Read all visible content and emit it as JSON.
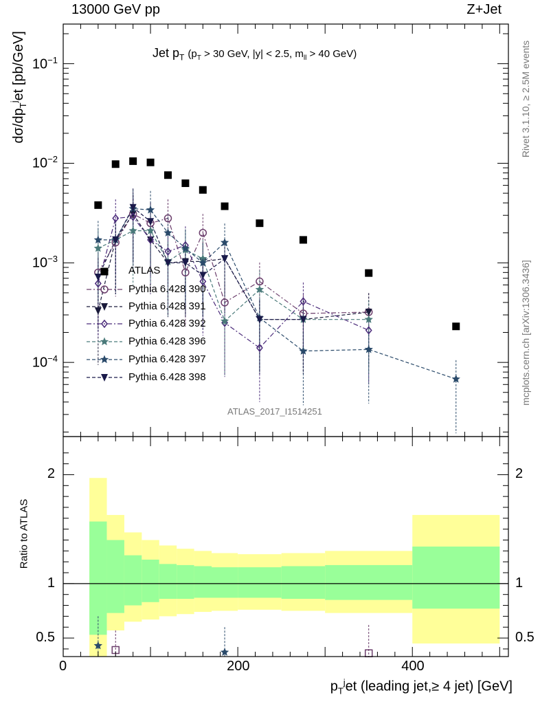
{
  "header": {
    "left": "13000 GeV pp",
    "right": "Z+Jet"
  },
  "title": {
    "main": "Jet p",
    "main_sub": "T",
    "cuts": "(p",
    "cuts_sub": "T",
    "cuts_rest": " > 30 GeV, |y| < 2.5, m",
    "cuts_sub2": "ll",
    "cuts_end": " > 40 GeV)"
  },
  "side_text": {
    "rivet": "Rivet 3.1.10, ≥ 2.5M events",
    "mcplots": "mcplots.cern.ch [arXiv:1306.3436]"
  },
  "analysis_tag": "ATLAS_2017_I1514251",
  "ylabel_top": "dσ/dp",
  "ylabel_top_sub": "T",
  "ylabel_top_sup": "j",
  "ylabel_top_rest": "et [pb/GeV]",
  "ylabel_bottom": "Ratio to ATLAS",
  "xlabel": "p",
  "xlabel_sub": "T",
  "xlabel_sup": "j",
  "xlabel_rest": "et (leading jet,≥ 4 jet) [GeV]",
  "chart_data": [
    {
      "type": "scatter",
      "panel": "main",
      "yscale": "log",
      "xlim": [
        0,
        510
      ],
      "ylim": [
        1.8e-05,
        0.25
      ],
      "xticks": [
        0,
        200,
        400
      ],
      "yticks": [
        {
          "value": 0.0001,
          "base": "10",
          "exp": "−4"
        },
        {
          "value": 0.001,
          "base": "10",
          "exp": "−3"
        },
        {
          "value": 0.01,
          "base": "10",
          "exp": "−2"
        },
        {
          "value": 0.1,
          "base": "10",
          "exp": "−1"
        }
      ],
      "legend_position": "left, middle of upper panel",
      "series": [
        {
          "name": "ATLAS",
          "color": "#000000",
          "marker": "square-filled",
          "line": "none",
          "x": [
            40,
            60,
            80,
            100,
            120,
            140,
            160,
            185,
            225,
            275,
            350,
            450
          ],
          "y": [
            0.0038,
            0.0098,
            0.0105,
            0.0102,
            0.0076,
            0.0063,
            0.0054,
            0.0037,
            0.0025,
            0.0017,
            0.00079,
            0.00023
          ]
        },
        {
          "name": "Pythia 6.428 390",
          "color": "#6b3d6b",
          "marker": "circle-open",
          "line": "dashdot",
          "x": [
            40,
            60,
            80,
            100,
            120,
            140,
            160,
            185,
            225,
            275,
            350
          ],
          "y": [
            0.0008,
            0.0016,
            0.0031,
            0.0025,
            0.0028,
            0.0008,
            0.002,
            0.0004,
            0.00065,
            0.00031,
            0.00032
          ]
        },
        {
          "name": "Pythia 6.428 391",
          "color": "#1a1a3a",
          "marker": "triangle-down-filled",
          "line": "dashed",
          "x": [
            40,
            60,
            80,
            100,
            120,
            140,
            160,
            185,
            225,
            275,
            350
          ],
          "y": [
            0.00033,
            0.0017,
            0.0031,
            0.0017,
            0.001,
            0.00103,
            0.00103,
            0.0011,
            0.00027,
            0.00027,
            0.00032
          ]
        },
        {
          "name": "Pythia 6.428 392",
          "color": "#4a2a7a",
          "marker": "diamond-open",
          "line": "dashdot",
          "x": [
            40,
            60,
            80,
            100,
            120,
            140,
            160,
            185,
            225,
            275,
            350
          ],
          "y": [
            0.00062,
            0.0028,
            0.0029,
            0.0017,
            0.0013,
            0.0015,
            0.00065,
            0.00025,
            0.00014,
            0.00041,
            0.00021
          ]
        },
        {
          "name": "Pythia 6.428 396",
          "color": "#4a7a7a",
          "marker": "star-filled",
          "line": "dashed",
          "x": [
            40,
            60,
            80,
            100,
            120,
            140,
            160,
            185,
            225,
            275,
            350
          ],
          "y": [
            0.0014,
            0.0017,
            0.0021,
            0.0021,
            0.00103,
            0.00135,
            0.0011,
            0.00026,
            0.00054,
            0.00027,
            0.00027
          ]
        },
        {
          "name": "Pythia 6.428 397",
          "color": "#2a4a6a",
          "marker": "star-filled",
          "line": "dashed",
          "x": [
            40,
            60,
            80,
            100,
            120,
            140,
            160,
            185,
            225,
            275,
            350,
            450
          ],
          "y": [
            0.0017,
            0.0017,
            0.0035,
            0.0034,
            0.002,
            0.0014,
            0.001,
            0.0016,
            0.00028,
            0.00013,
            0.000135,
            6.8e-05
          ]
        },
        {
          "name": "Pythia 6.428 398",
          "color": "#1a1a4a",
          "marker": "triangle-down-filled",
          "line": "dashed",
          "x": [
            40,
            60,
            80,
            100,
            120,
            140,
            160,
            185,
            225,
            275
          ],
          "y": [
            0.00072,
            0.0017,
            0.0036,
            0.0026,
            0.001,
            0.001,
            0.00075,
            0.0011,
            0.00027,
            0.00027
          ]
        }
      ]
    },
    {
      "type": "area",
      "panel": "ratio",
      "yscale": "linear",
      "xlim": [
        0,
        510
      ],
      "ylim": [
        0.33,
        2.35
      ],
      "xticks": [
        0,
        200,
        400
      ],
      "yticks": [
        0.5,
        1,
        2
      ],
      "reference_line": 1,
      "bins": [
        {
          "lo": 30,
          "hi": 50,
          "green": [
            0.53,
            1.57
          ],
          "yellow": [
            0.33,
            1.97
          ]
        },
        {
          "lo": 50,
          "hi": 70,
          "green": [
            0.73,
            1.4
          ],
          "yellow": [
            0.57,
            1.63
          ]
        },
        {
          "lo": 70,
          "hi": 90,
          "green": [
            0.8,
            1.26
          ],
          "yellow": [
            0.65,
            1.47
          ]
        },
        {
          "lo": 90,
          "hi": 110,
          "green": [
            0.83,
            1.22
          ],
          "yellow": [
            0.67,
            1.4
          ]
        },
        {
          "lo": 110,
          "hi": 130,
          "green": [
            0.86,
            1.18
          ],
          "yellow": [
            0.7,
            1.35
          ]
        },
        {
          "lo": 130,
          "hi": 150,
          "green": [
            0.86,
            1.17
          ],
          "yellow": [
            0.72,
            1.32
          ]
        },
        {
          "lo": 150,
          "hi": 170,
          "green": [
            0.87,
            1.16
          ],
          "yellow": [
            0.74,
            1.3
          ]
        },
        {
          "lo": 170,
          "hi": 200,
          "green": [
            0.87,
            1.15
          ],
          "yellow": [
            0.75,
            1.28
          ]
        },
        {
          "lo": 200,
          "hi": 250,
          "green": [
            0.87,
            1.15
          ],
          "yellow": [
            0.76,
            1.27
          ]
        },
        {
          "lo": 250,
          "hi": 300,
          "green": [
            0.86,
            1.16
          ],
          "yellow": [
            0.75,
            1.28
          ]
        },
        {
          "lo": 300,
          "hi": 400,
          "green": [
            0.85,
            1.17
          ],
          "yellow": [
            0.73,
            1.3
          ]
        },
        {
          "lo": 400,
          "hi": 500,
          "green": [
            0.77,
            1.34
          ],
          "yellow": [
            0.45,
            1.63
          ]
        }
      ],
      "points": [
        {
          "series": "Pythia 6.428 397",
          "x": 40,
          "y": 0.43,
          "err": [
            0.3,
            0.7
          ],
          "color": "#2a4a6a",
          "marker": "star-filled"
        },
        {
          "series": "Pythia 6.428 391",
          "x": 60,
          "y": 0.39,
          "err": [
            0.3,
            0.57
          ],
          "color": "#6b3d6b",
          "marker": "square-open"
        },
        {
          "series": "Pythia 6.428 397",
          "x": 185,
          "y": 0.37,
          "err": [
            0.3,
            0.6
          ],
          "color": "#2a4a6a",
          "marker": "star-filled"
        },
        {
          "series": "Pythia 6.428 391",
          "x": 350,
          "y": 0.36,
          "err": [
            0.3,
            0.62
          ],
          "color": "#6b3d6b",
          "marker": "square-open"
        }
      ]
    }
  ]
}
